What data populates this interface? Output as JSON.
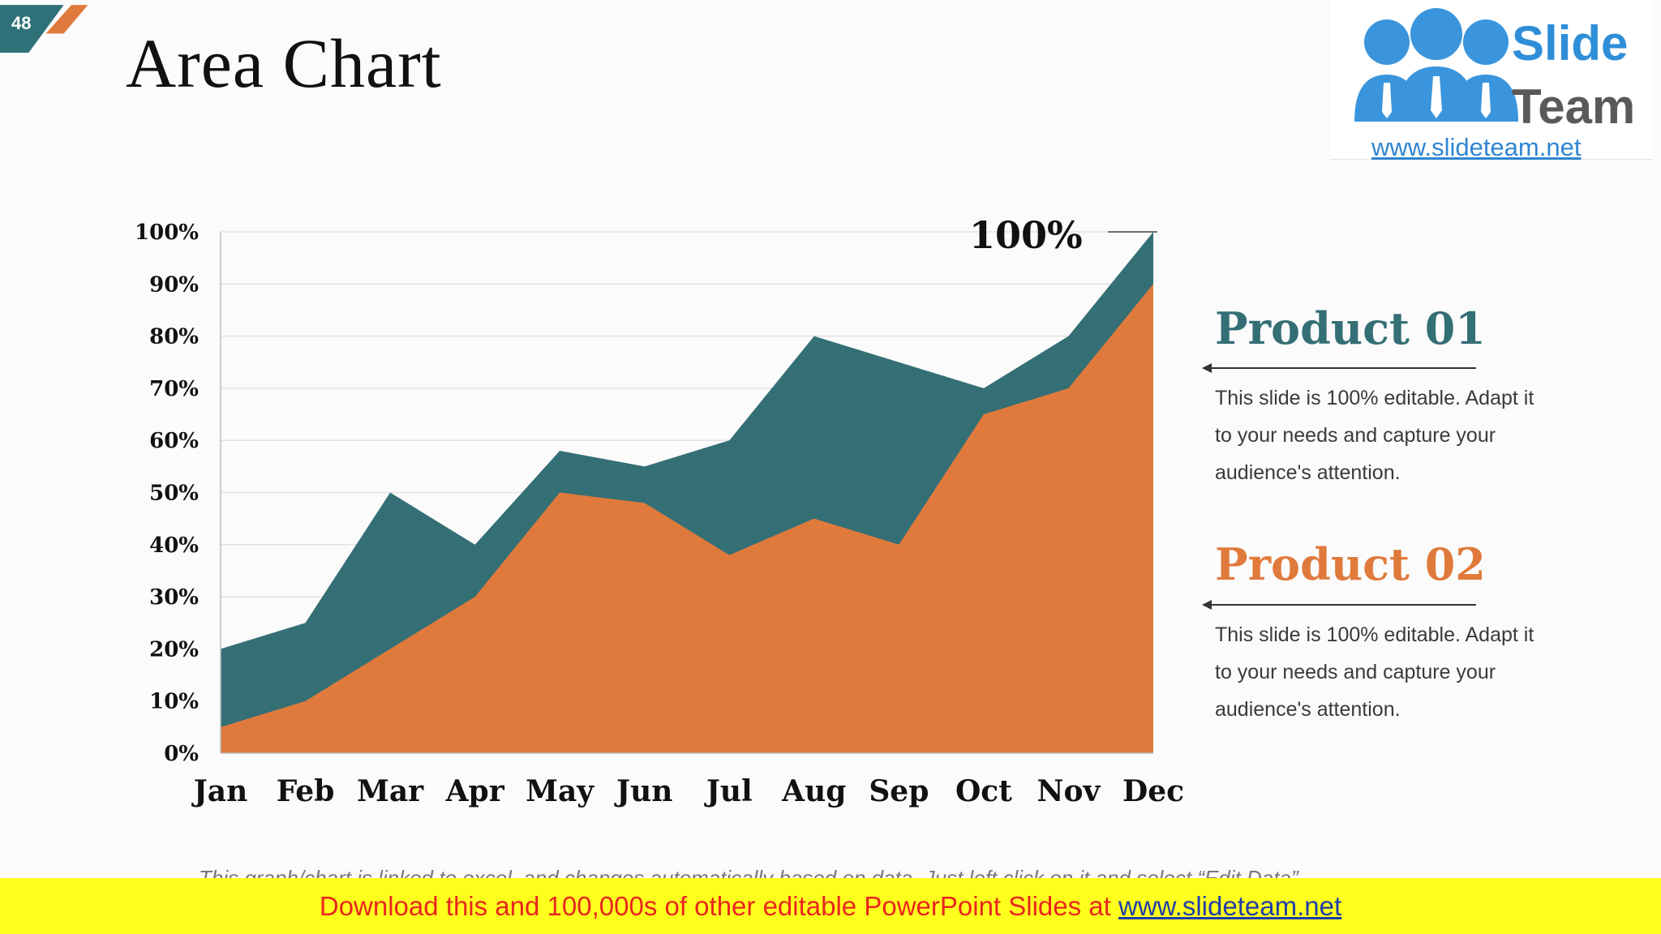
{
  "slide_number": "48",
  "title": "Area Chart",
  "logo": {
    "line1": "Slide",
    "line2": "Team",
    "url": "www.slideteam.net"
  },
  "peak_label": "100%",
  "products": [
    {
      "title": "Product 01",
      "description": "This slide is 100% editable. Adapt it to your needs and capture your audience's attention.",
      "color": "#346f75"
    },
    {
      "title": "Product 02",
      "description": "This slide is 100% editable. Adapt it to your needs and capture your audience's attention.",
      "color": "#e07a3c"
    }
  ],
  "footnote": "This graph/chart is linked to excel, and changes automatically based on data. Just left click on it and select “Edit Data”.",
  "banner": {
    "text": "Download this and 100,000s of other editable PowerPoint Slides at ",
    "link": "www.slideteam.net"
  },
  "colors": {
    "product01": "#346f75",
    "product02": "#e07a3c",
    "gridline": "#e2e2e2",
    "tab_teal": "#2e7179",
    "tab_orange": "#e07a3c"
  },
  "chart_data": {
    "type": "area",
    "categories": [
      "Jan",
      "Feb",
      "Mar",
      "Apr",
      "May",
      "Jun",
      "Jul",
      "Aug",
      "Sep",
      "Oct",
      "Nov",
      "Dec"
    ],
    "series": [
      {
        "name": "Product 01",
        "values": [
          20,
          25,
          50,
          40,
          58,
          55,
          60,
          80,
          75,
          70,
          80,
          100
        ]
      },
      {
        "name": "Product 02",
        "values": [
          5,
          10,
          20,
          30,
          50,
          48,
          38,
          45,
          40,
          65,
          70,
          90
        ]
      }
    ],
    "y_ticks": [
      "0%",
      "10%",
      "20%",
      "30%",
      "40%",
      "50%",
      "60%",
      "70%",
      "80%",
      "90%",
      "100%"
    ],
    "ylim": [
      0,
      100
    ],
    "grid": true,
    "legend": "right"
  }
}
